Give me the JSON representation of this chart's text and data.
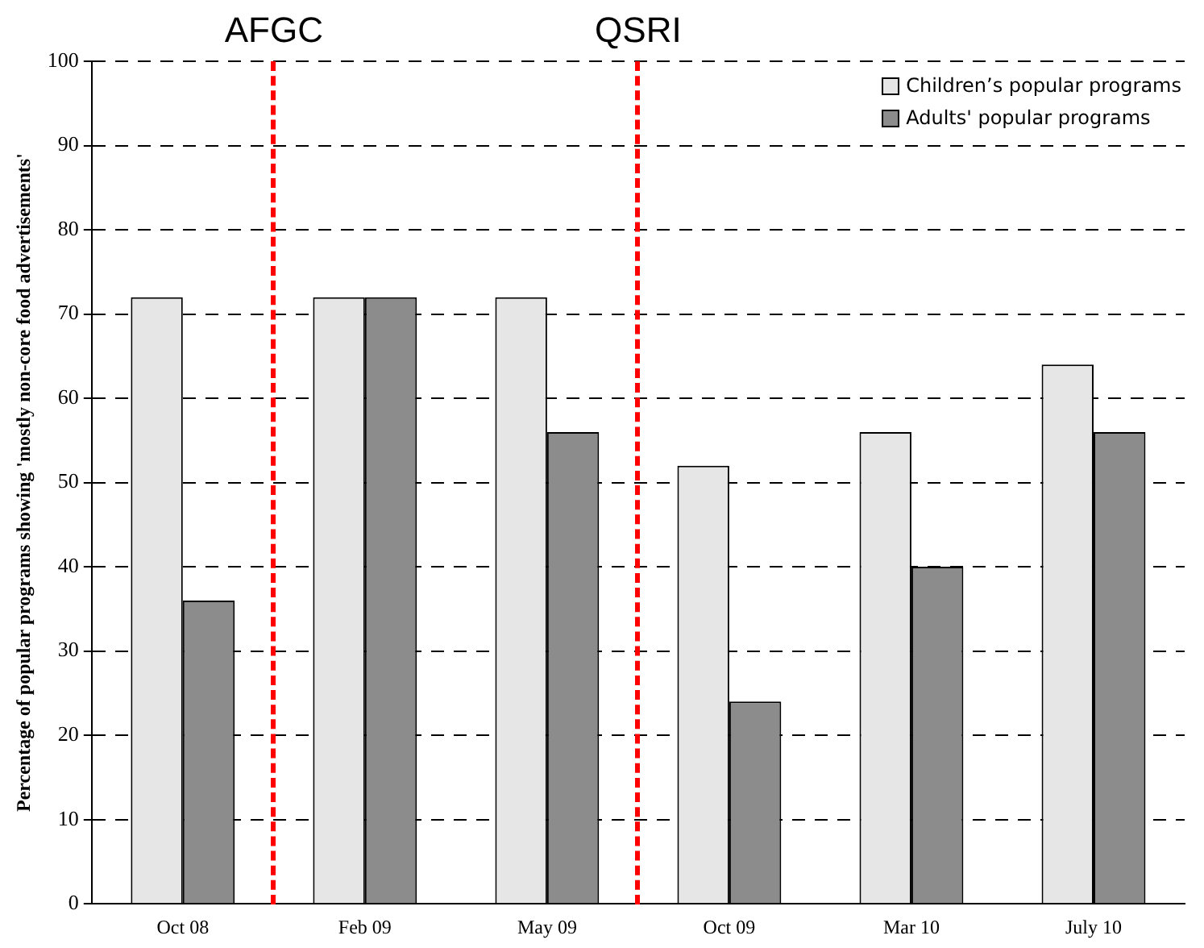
{
  "chart_data": {
    "type": "bar",
    "ylabel": "Percentage of popular programs showing 'mostly non-core food advertisements'",
    "categories": [
      "Oct 08",
      "Feb 09",
      "May 09",
      "Oct 09",
      "Mar 10",
      "July 10"
    ],
    "series": [
      {
        "name": "Children’s popular programs",
        "color": "#e6e6e6",
        "values": [
          72,
          72,
          72,
          52,
          56,
          64
        ]
      },
      {
        "name": "Adults' popular programs",
        "color": "#8c8c8c",
        "values": [
          36,
          72,
          56,
          24,
          40,
          56
        ]
      }
    ],
    "ylim": [
      0,
      100
    ],
    "yticks": [
      0,
      10,
      20,
      30,
      40,
      50,
      60,
      70,
      80,
      90,
      100
    ],
    "grid": "y",
    "legend": "top right",
    "annotations": [
      "AFGC",
      "QSRI"
    ]
  }
}
